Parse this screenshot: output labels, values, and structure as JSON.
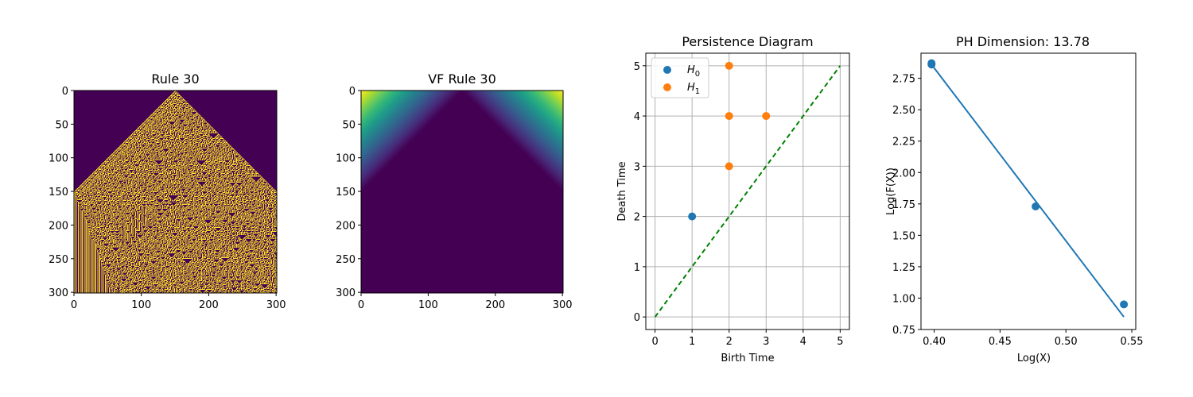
{
  "chart_data": [
    {
      "type": "heatmap",
      "title": "Rule 30",
      "colormap": "viridis-binary",
      "colors": {
        "background": "#440154",
        "cell_on": "#fde725"
      },
      "xlim": [
        0,
        301
      ],
      "ylim": [
        301,
        0
      ],
      "xticks": [
        0,
        100,
        200,
        300
      ],
      "yticks": [
        0,
        50,
        100,
        150,
        200,
        250,
        300
      ],
      "pattern": "Rule 30 cellular automaton grown from a single center cell at column 150"
    },
    {
      "type": "heatmap",
      "title": "VF Rule 30",
      "colormap": "viridis",
      "colors": {
        "low": "#440154",
        "mid": "#21918c",
        "high": "#fde725"
      },
      "xlim": [
        0,
        301
      ],
      "ylim": [
        301,
        0
      ],
      "xticks": [
        0,
        100,
        200,
        300
      ],
      "yticks": [
        0,
        50,
        100,
        150,
        200,
        250,
        300
      ],
      "pattern": "distance field, high in the top corners outside the triangle, low inside"
    },
    {
      "type": "scatter",
      "title": "Persistence Diagram",
      "xlabel": "Birth Time",
      "ylabel": "Death Time",
      "xlim": [
        -0.25,
        5.25
      ],
      "ylim": [
        -0.25,
        5.25
      ],
      "xticks": [
        0,
        1,
        2,
        3,
        4,
        5
      ],
      "yticks": [
        0,
        1,
        2,
        3,
        4,
        5
      ],
      "grid": true,
      "legend": "top-left",
      "series": [
        {
          "name": "H",
          "subscript": "0",
          "color": "#1f77b4",
          "points": [
            [
              1,
              2
            ]
          ]
        },
        {
          "name": "H",
          "subscript": "1",
          "color": "#ff7f0e",
          "points": [
            [
              2,
              5
            ],
            [
              2,
              4
            ],
            [
              3,
              4
            ],
            [
              2,
              3
            ]
          ]
        }
      ],
      "diagonal": {
        "from": [
          0,
          0
        ],
        "to": [
          5,
          5
        ],
        "color": "#008000",
        "style": "dashed"
      }
    },
    {
      "type": "scatter",
      "title": "PH Dimension:  13.78",
      "xlabel": "Log(X)",
      "ylabel": "Log(F(X))",
      "xlim": [
        0.39,
        0.553
      ],
      "ylim": [
        0.75,
        2.95
      ],
      "xticks": [
        0.4,
        0.45,
        0.5,
        0.55
      ],
      "xtick_labels": [
        "0.40",
        "0.45",
        "0.50",
        "0.55"
      ],
      "yticks": [
        0.75,
        1.0,
        1.25,
        1.5,
        1.75,
        2.0,
        2.25,
        2.5,
        2.75
      ],
      "ytick_labels": [
        "0.75",
        "1.00",
        "1.25",
        "1.50",
        "1.75",
        "2.00",
        "2.25",
        "2.50",
        "2.75"
      ],
      "grid": false,
      "series": [
        {
          "name": "points",
          "color": "#1f77b4",
          "points": [
            [
              0.398,
              2.87
            ],
            [
              0.398,
              2.86
            ],
            [
              0.477,
              1.73
            ],
            [
              0.544,
              0.95
            ]
          ]
        }
      ],
      "fit": {
        "from": [
          0.398,
          2.86
        ],
        "to": [
          0.544,
          0.85
        ],
        "color": "#1f77b4"
      }
    }
  ]
}
